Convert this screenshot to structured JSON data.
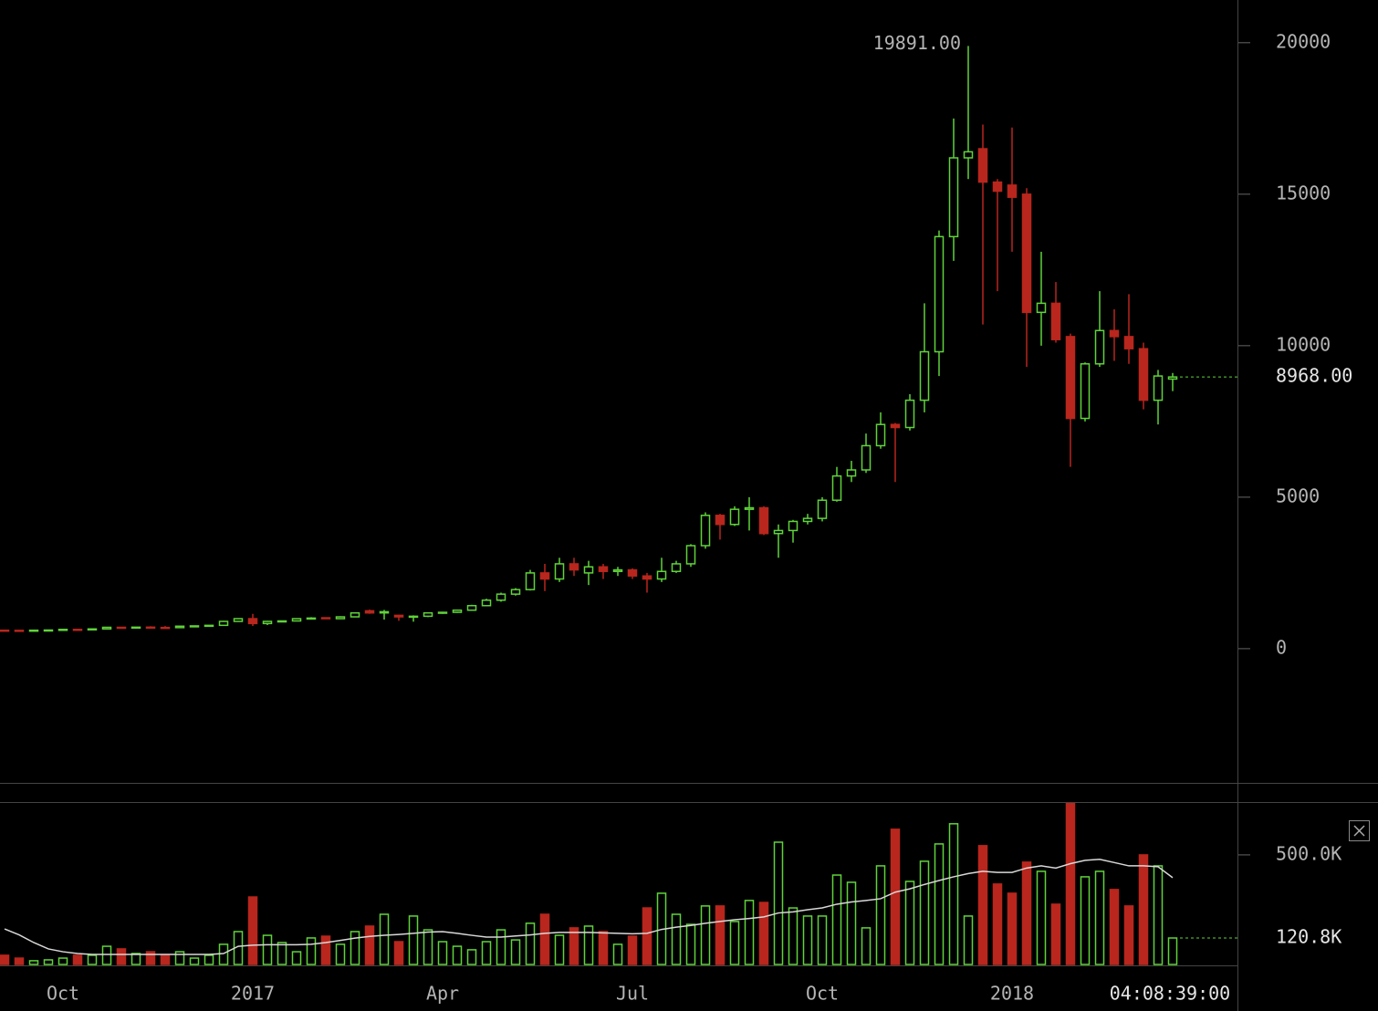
{
  "chart_data": [
    {
      "type": "candlestick",
      "categories": [
        null,
        null,
        null,
        null,
        "Oct",
        null,
        null,
        null,
        null,
        null,
        null,
        null,
        null,
        null,
        null,
        null,
        null,
        "2017",
        null,
        null,
        null,
        null,
        null,
        null,
        null,
        null,
        null,
        null,
        null,
        null,
        "Apr",
        null,
        null,
        null,
        null,
        null,
        null,
        null,
        null,
        null,
        null,
        null,
        null,
        "Jul",
        null,
        null,
        null,
        null,
        null,
        null,
        null,
        null,
        null,
        null,
        null,
        null,
        "Oct",
        null,
        null,
        null,
        null,
        null,
        null,
        null,
        null,
        null,
        null,
        null,
        null,
        "2018",
        null,
        null,
        null,
        null,
        null,
        null,
        null,
        null,
        null,
        null,
        null
      ],
      "open": [
        608,
        604,
        600,
        608,
        615,
        636,
        632,
        652,
        705,
        698,
        710,
        700,
        695,
        742,
        752,
        770,
        900,
        990,
        830,
        900,
        915,
        990,
        1020,
        990,
        1050,
        1250,
        1180,
        1100,
        1050,
        1070,
        1180,
        1200,
        1270,
        1420,
        1600,
        1800,
        1950,
        2500,
        2300,
        2800,
        2500,
        2700,
        2550,
        2600,
        2400,
        2300,
        2550,
        2800,
        3400,
        4400,
        4100,
        4600,
        4650,
        3800,
        3900,
        4200,
        4300,
        4900,
        5700,
        5900,
        6700,
        7400,
        7300,
        8200,
        9800,
        13600,
        16200,
        16500,
        15400,
        15300,
        15000,
        11100,
        11400,
        10300,
        7600,
        9400,
        10500,
        10300,
        9900,
        8200,
        8900
      ],
      "high": [
        612,
        612,
        615,
        620,
        640,
        645,
        660,
        720,
        720,
        715,
        740,
        745,
        750,
        760,
        780,
        920,
        1000,
        1150,
        920,
        930,
        1000,
        1040,
        1030,
        1070,
        1190,
        1290,
        1280,
        1120,
        1100,
        1200,
        1220,
        1290,
        1450,
        1650,
        1850,
        2000,
        2600,
        2800,
        3000,
        3000,
        2900,
        2800,
        2700,
        2650,
        2500,
        3000,
        2900,
        3450,
        4500,
        4450,
        4700,
        5000,
        4700,
        4100,
        4250,
        4450,
        5000,
        6000,
        6200,
        7100,
        7800,
        7450,
        8400,
        11400,
        13800,
        17500,
        19891,
        17300,
        15500,
        17200,
        15200,
        13100,
        12100,
        10400,
        9450,
        11800,
        11200,
        11700,
        10100,
        9200,
        9100
      ],
      "low": [
        600,
        596,
        598,
        605,
        610,
        628,
        630,
        645,
        690,
        692,
        695,
        690,
        690,
        735,
        745,
        765,
        890,
        750,
        780,
        880,
        905,
        960,
        980,
        980,
        1040,
        1150,
        960,
        920,
        890,
        1040,
        1150,
        1180,
        1260,
        1400,
        1550,
        1750,
        1920,
        1900,
        2200,
        2400,
        2100,
        2300,
        2400,
        2300,
        1850,
        2200,
        2500,
        2700,
        3300,
        3600,
        4050,
        3900,
        3750,
        3000,
        3500,
        4100,
        4200,
        4850,
        5500,
        5800,
        6600,
        5500,
        7200,
        7800,
        9000,
        12800,
        15500,
        10700,
        11800,
        13100,
        9300,
        10000,
        10100,
        6000,
        7500,
        9300,
        9500,
        9400,
        7900,
        7400,
        8500
      ],
      "close": [
        604,
        600,
        608,
        615,
        636,
        632,
        652,
        705,
        698,
        710,
        700,
        695,
        742,
        752,
        770,
        900,
        990,
        830,
        900,
        915,
        990,
        1010,
        990,
        1050,
        1180,
        1180,
        1220,
        1050,
        1070,
        1180,
        1200,
        1270,
        1420,
        1600,
        1800,
        1950,
        2500,
        2300,
        2800,
        2600,
        2700,
        2550,
        2600,
        2400,
        2300,
        2550,
        2800,
        3400,
        4400,
        4100,
        4600,
        4650,
        3800,
        3900,
        4200,
        4300,
        4900,
        5700,
        5900,
        6700,
        7400,
        7300,
        8200,
        9800,
        13600,
        16200,
        16400,
        15400,
        15100,
        14900,
        11100,
        11400,
        10200,
        7600,
        9400,
        10500,
        10300,
        9900,
        8200,
        9000,
        8968
      ],
      "ylim": [
        -4430,
        21410
      ],
      "yticks": [
        0,
        5000,
        10000,
        15000,
        20000
      ],
      "up_color": "#5fd33a",
      "down_color": "#b8261d",
      "peak": {
        "value": 19891,
        "label": "19891.00"
      },
      "last": {
        "value": 8968,
        "label": "8968.00"
      },
      "clock": "04:08:39:00"
    },
    {
      "type": "bar",
      "values": [
        42000,
        29000,
        17000,
        21000,
        29000,
        42000,
        42000,
        83000,
        71000,
        50000,
        58000,
        42000,
        58000,
        29000,
        42000,
        92000,
        150000,
        308000,
        133000,
        100000,
        58000,
        121000,
        129000,
        92000,
        150000,
        175000,
        229000,
        104000,
        221000,
        158000,
        104000,
        83000,
        67000,
        104000,
        158000,
        112000,
        188000,
        229000,
        133000,
        167000,
        175000,
        150000,
        92000,
        129000,
        258000,
        325000,
        229000,
        183000,
        267000,
        267000,
        196000,
        292000,
        283000,
        558000,
        258000,
        221000,
        221000,
        408000,
        375000,
        167000,
        450000,
        617000,
        379000,
        471000,
        550000,
        642000,
        221000,
        542000,
        367000,
        325000,
        467000,
        425000,
        275000,
        742000,
        400000,
        425000,
        342000,
        267000,
        500000,
        450000,
        120800
      ],
      "ma_values": [
        162000,
        135000,
        100000,
        71000,
        58000,
        50000,
        46000,
        46000,
        46000,
        46000,
        46000,
        46000,
        46000,
        46000,
        46000,
        50000,
        83000,
        88000,
        90000,
        90000,
        90000,
        92000,
        100000,
        110000,
        120000,
        128000,
        133000,
        137000,
        142000,
        148000,
        150000,
        142000,
        133000,
        125000,
        125000,
        130000,
        135000,
        142000,
        146000,
        146000,
        146000,
        144000,
        142000,
        140000,
        142000,
        160000,
        170000,
        178000,
        188000,
        196000,
        204000,
        210000,
        217000,
        235000,
        240000,
        250000,
        258000,
        275000,
        285000,
        292000,
        300000,
        330000,
        345000,
        365000,
        383000,
        400000,
        415000,
        425000,
        420000,
        420000,
        440000,
        450000,
        440000,
        460000,
        475000,
        480000,
        465000,
        450000,
        450000,
        446000,
        396000
      ],
      "ma_color": "#d8d8d8",
      "ylim": [
        0,
        737000
      ],
      "yticks": [
        {
          "value": 500000,
          "label": "500.0K"
        }
      ],
      "last": {
        "value": 120800,
        "label": "120.8K"
      }
    }
  ]
}
